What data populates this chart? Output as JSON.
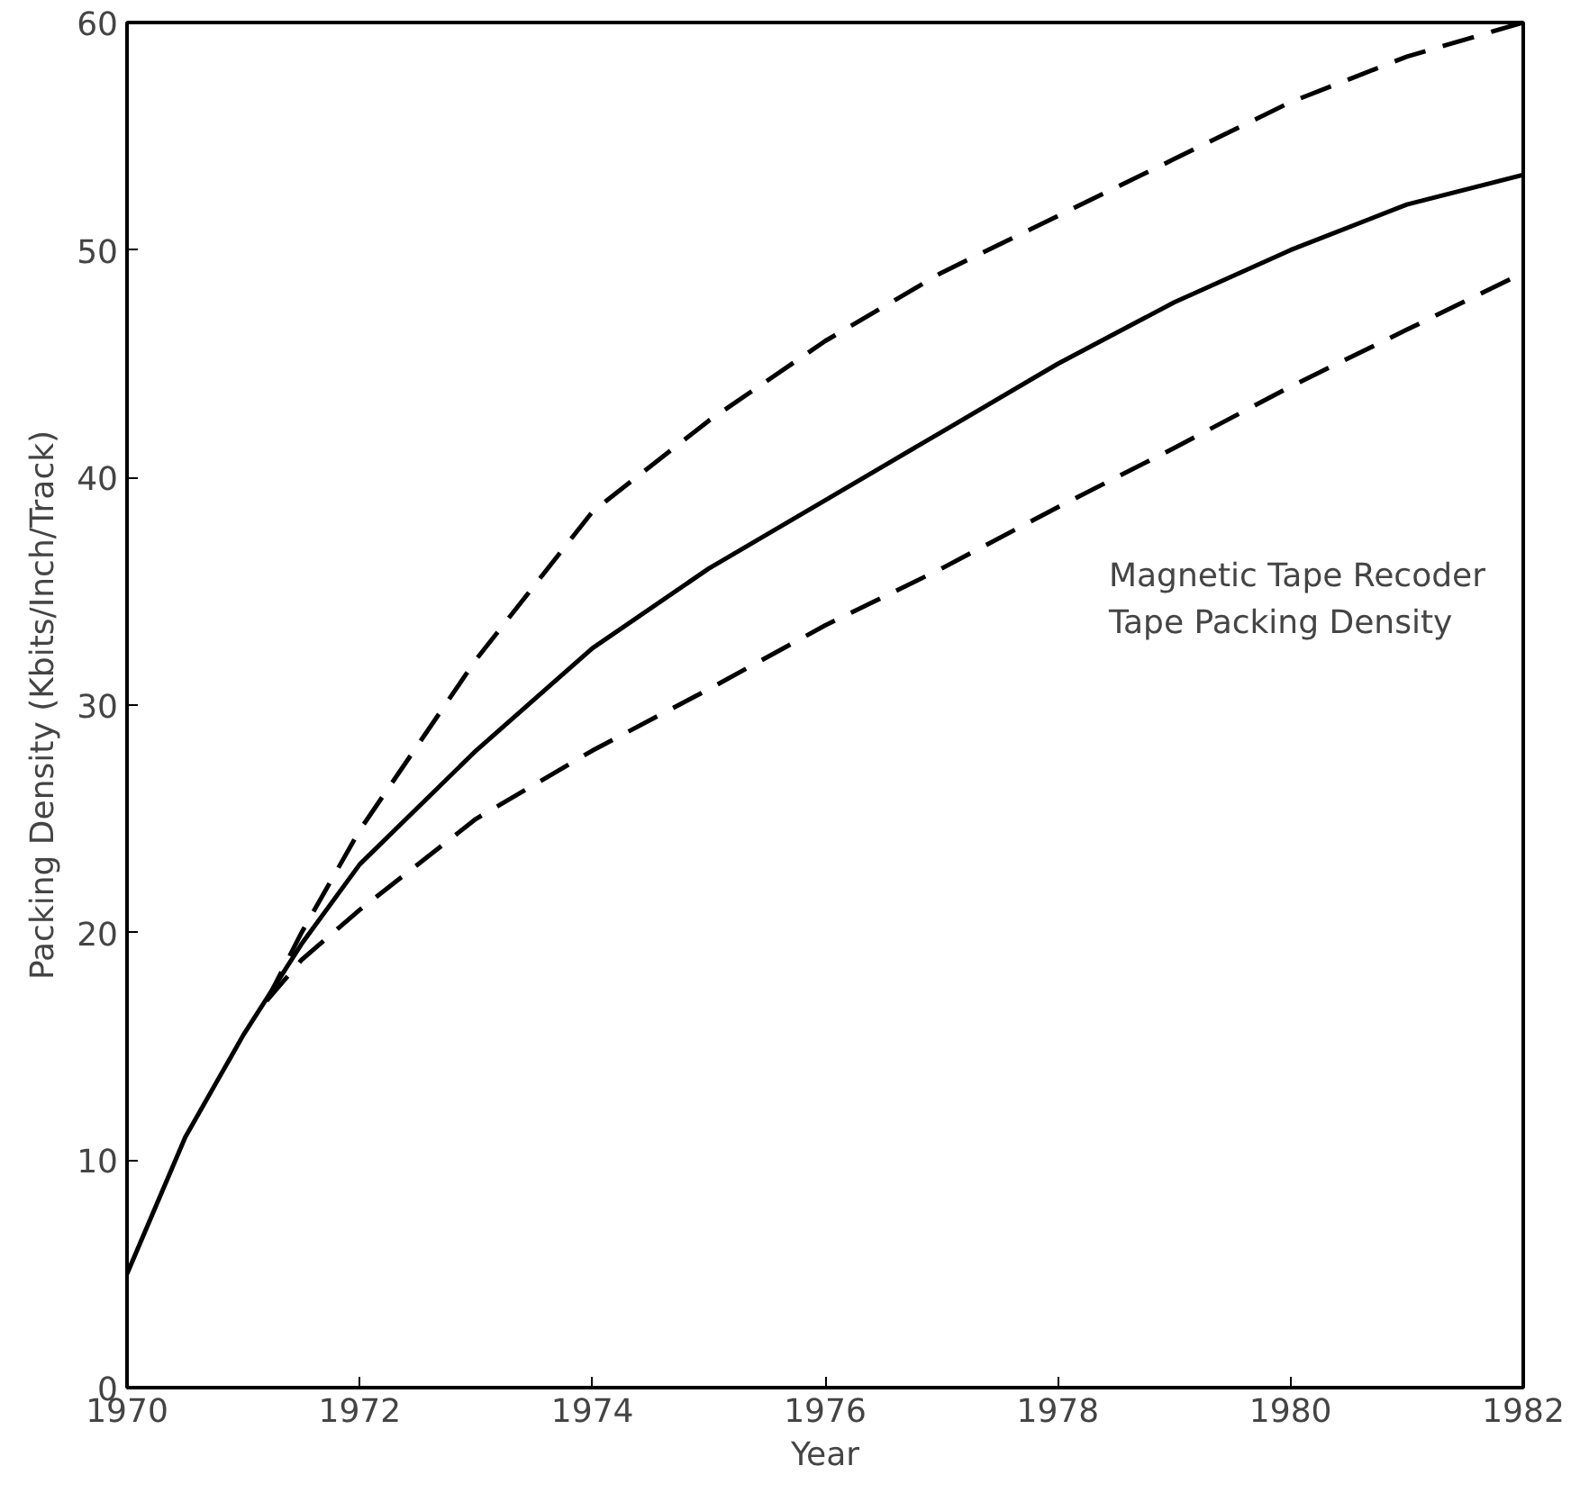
{
  "chart_data": {
    "type": "line",
    "xlabel": "Year",
    "ylabel": "Packing Density (Kbits/Inch/Track)",
    "annotations": [
      "Magnetic Tape Recoder\nTape Packing Density"
    ],
    "xlim": [
      1970,
      1982
    ],
    "ylim": [
      0,
      60
    ],
    "xticks": [
      1970,
      1972,
      1974,
      1976,
      1978,
      1980,
      1982
    ],
    "yticks": [
      0,
      10,
      20,
      30,
      40,
      50,
      60
    ],
    "grid": false,
    "marker": "none",
    "series": [
      {
        "color": "#000000",
        "line_style": "solid",
        "x": [
          1970,
          1970.5,
          1971,
          1971.5,
          1972,
          1973,
          1974,
          1975,
          1976,
          1977,
          1978,
          1979,
          1980,
          1981,
          1982
        ],
        "values": [
          5,
          11,
          15.5,
          19.5,
          23,
          28,
          32.5,
          36,
          39,
          42,
          45,
          47.7,
          50,
          52,
          53.3
        ]
      },
      {
        "color": "#000000",
        "line_style": "dashed",
        "x": [
          1971.2,
          1971.5,
          1972,
          1973,
          1974,
          1975,
          1976,
          1977,
          1978,
          1979,
          1980,
          1981,
          1982
        ],
        "values": [
          17,
          20,
          24.5,
          32,
          38.5,
          42.5,
          46,
          49,
          51.5,
          54,
          56.5,
          58.5,
          60
        ]
      },
      {
        "color": "#000000",
        "line_style": "dashed",
        "x": [
          1971.2,
          1971.5,
          1972,
          1973,
          1974,
          1975,
          1976,
          1977,
          1978,
          1979,
          1980,
          1981,
          1982
        ],
        "values": [
          17,
          18.8,
          21,
          25,
          28,
          30.7,
          33.5,
          36,
          38.7,
          41.3,
          44,
          46.5,
          49
        ]
      }
    ]
  }
}
